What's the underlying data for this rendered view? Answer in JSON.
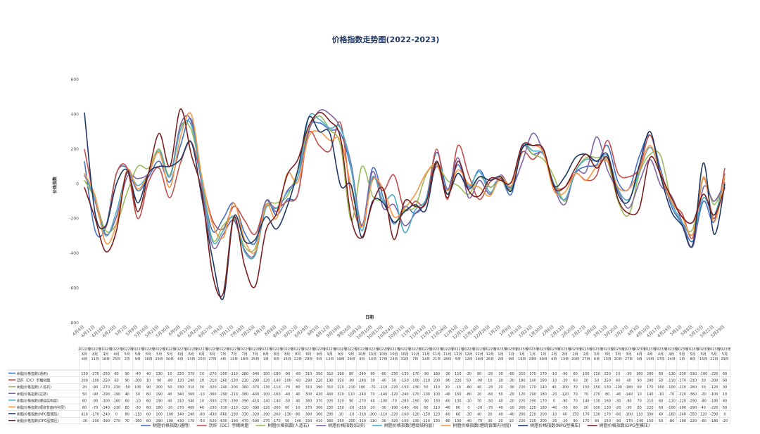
{
  "chart_data": {
    "type": "line",
    "title": "价格指数走势图(2022-2023)",
    "xlabel": "日期",
    "ylabel": "价格指数",
    "ylim": [
      -800,
      600
    ],
    "yticks": [
      600,
      400,
      200,
      0,
      -200,
      -400,
      -600,
      -800
    ],
    "grid": false,
    "legend_position": "bottom",
    "categories": [
      "4月4日",
      "4月11日",
      "4月18日",
      "4月25日",
      "5月2日",
      "5月9日",
      "5月16日",
      "5月23日",
      "5月30日",
      "6月6日",
      "6月13日",
      "6月20日",
      "6月27日",
      "7月4日",
      "7月11日",
      "7月18日",
      "7月25日",
      "8月1日",
      "8月8日",
      "8月15日",
      "8月22日",
      "8月29日",
      "9月5日",
      "9月12日",
      "9月19日",
      "9月26日",
      "10月3日",
      "10月10日",
      "10月17日",
      "10月24日",
      "10月31日",
      "11月7日",
      "11月14日",
      "11月21日",
      "11月28日",
      "12月5日",
      "12月12日",
      "12月19日",
      "12月26日",
      "1月2日",
      "1月9日",
      "1月16日",
      "1月23日",
      "1月30日",
      "2月6日",
      "2月13日",
      "2月20日",
      "2月27日",
      "3月6日",
      "3月13日",
      "3月20日",
      "3月27日",
      "4月3日",
      "4月10日",
      "4月17日",
      "4月24日",
      "5月1日",
      "5月8日",
      "5月15日",
      "5月22日",
      "5月29日"
    ],
    "table_categories": [
      "2022年4月4日",
      "2022年4月11日",
      "2022年4月18日",
      "2022年4月25日",
      "2022年5月2日",
      "2022年5月9日",
      "2022年5月16日",
      "2022年5月23日",
      "2022年5月30日",
      "2022年6月6日",
      "2022年6月13日",
      "2022年6月20日",
      "2022年6月27日",
      "2022年7月4日",
      "2022年7月11日",
      "2022年7月18日",
      "2022年7月25日",
      "2022年8月1日",
      "2022年8月8日",
      "2022年8月15日",
      "2022年8月22日",
      "2022年8月29日",
      "2022年9月5日",
      "2022年9月12日",
      "2022年9月19日",
      "2022年9月26日",
      "2022年10月3日",
      "2022年10月10日",
      "2022年10月17日",
      "2022年10月24日",
      "2022年10月31日",
      "2022年11月7日",
      "2022年11月14日",
      "2022年11月21日",
      "2022年11月28日",
      "2022年12月5日",
      "2022年12月12日",
      "2022年12月19日",
      "2022年12月26日",
      "2023年1月2日",
      "2023年1月9日",
      "2023年1月16日",
      "2023年1月23日",
      "2023年1月30日",
      "2023年2月6日",
      "2023年2月13日",
      "2023年2月20日",
      "2023年2月27日",
      "2023年3月6日",
      "2023年3月13日",
      "2023年3月20日",
      "2023年3月27日",
      "2023年4月3日",
      "2023年4月10日",
      "2023年4月17日",
      "2023年4月24日",
      "2023年5月1日",
      "2023年5月8日",
      "2023年5月15日",
      "2023年5月22日",
      "2023年5月29日"
    ],
    "series": [
      {
        "name": "树脂价格指数(通用)",
        "color": "#4472c4",
        "values": [
          130,
          -270,
          -250,
          60,
          90,
          -40,
          40,
          130,
          10,
          220,
          370,
          10,
          -270,
          -200,
          -110,
          -280,
          -340,
          -100,
          -180,
          -90,
          -60,
          310,
          350,
          310,
          290,
          80,
          -240,
          90,
          -80,
          -230,
          -130,
          -170,
          -90,
          180,
          -30,
          110,
          -20,
          80,
          -20,
          30,
          -60,
          210,
          170,
          170,
          -10,
          -90,
          60,
          100,
          110,
          220,
          10,
          -30,
          160,
          280,
          80,
          -130,
          -230,
          -330,
          -100,
          -220,
          60
        ]
      },
      {
        "name": "沥纤（DC）手糊树脂",
        "color": "#c0504d",
        "values": [
          200,
          -100,
          -250,
          60,
          90,
          -200,
          10,
          90,
          -80,
          120,
          240,
          20,
          -210,
          -260,
          -130,
          -210,
          -290,
          -120,
          -140,
          -100,
          -60,
          290,
          220,
          190,
          350,
          -80,
          -240,
          30,
          -40,
          50,
          -150,
          -100,
          -110,
          200,
          -90,
          220,
          50,
          -90,
          10,
          30,
          -30,
          180,
          140,
          180,
          -10,
          -20,
          60,
          20,
          50,
          250,
          60,
          40,
          90,
          280,
          50,
          -110,
          -170,
          -310,
          30,
          -200,
          90
        ]
      },
      {
        "name": "树脂价格指数(人造石)",
        "color": "#9bbb59",
        "values": [
          20,
          -90,
          -270,
          -230,
          -50,
          100,
          90,
          200,
          50,
          330,
          310,
          30,
          -320,
          -240,
          -200,
          -360,
          -370,
          -130,
          -110,
          -70,
          80,
          310,
          390,
          310,
          220,
          -210,
          100,
          -70,
          -110,
          -220,
          -150,
          -130,
          50,
          110,
          20,
          -10,
          -60,
          40,
          -20,
          20,
          -30,
          220,
          170,
          140,
          40,
          -100,
          70,
          150,
          150,
          130,
          -100,
          -180,
          60,
          170,
          160,
          -100,
          -220,
          -260,
          30,
          -120,
          30
        ]
      },
      {
        "name": "树脂价格指数(拉挤)",
        "color": "#8064a2",
        "values": [
          50,
          -90,
          -290,
          -190,
          40,
          30,
          60,
          190,
          40,
          340,
          360,
          -10,
          -360,
          -290,
          -210,
          -380,
          -400,
          -100,
          -160,
          -40,
          40,
          300,
          420,
          400,
          320,
          110,
          -240,
          70,
          -140,
          -120,
          -240,
          -170,
          -100,
          100,
          -40,
          150,
          -80,
          20,
          -60,
          50,
          -20,
          120,
          290,
          180,
          -20,
          -120,
          70,
          70,
          270,
          80,
          -40,
          -140,
          10,
          140,
          -10,
          -70,
          -220,
          -360,
          -20,
          -100,
          10
        ]
      },
      {
        "name": "树脂价格指数(缠绕结构层)",
        "color": "#4bacc6",
        "values": [
          60,
          -90,
          -300,
          -160,
          60,
          -10,
          60,
          190,
          40,
          310,
          340,
          10,
          -330,
          -270,
          -190,
          -390,
          -410,
          -140,
          -140,
          -50,
          40,
          380,
          370,
          320,
          320,
          90,
          -270,
          40,
          -100,
          -70,
          -280,
          -150,
          -90,
          130,
          -60,
          130,
          -10,
          70,
          -50,
          40,
          -20,
          220,
          190,
          170,
          0,
          -90,
          70,
          140,
          130,
          160,
          -30,
          -90,
          70,
          210,
          60,
          -110,
          -220,
          -290,
          -80,
          -180,
          40
        ]
      },
      {
        "name": "树脂价格指数(缠绕背面内衬层)",
        "color": "#f79646",
        "values": [
          60,
          -70,
          -340,
          -230,
          80,
          -30,
          60,
          180,
          -20,
          270,
          400,
          40,
          -230,
          -310,
          -110,
          -320,
          -390,
          -120,
          -200,
          60,
          10,
          270,
          300,
          250,
          250,
          -20,
          -250,
          20,
          -30,
          -190,
          -140,
          -60,
          60,
          110,
          -40,
          80,
          0,
          -20,
          -70,
          40,
          -10,
          200,
          220,
          180,
          -40,
          -50,
          60,
          20,
          100,
          130,
          -20,
          -30,
          80,
          220,
          60,
          -100,
          -190,
          -290,
          40,
          -220,
          50
        ]
      },
      {
        "name": "树脂价格指数(NPG型模压)",
        "color": "#1f3864",
        "values": [
          410,
          -170,
          -240,
          0,
          80,
          -110,
          60,
          100,
          100,
          140,
          240,
          -80,
          -430,
          -660,
          -190,
          -330,
          -320,
          -190,
          -260,
          -130,
          80,
          380,
          300,
          290,
          -10,
          -10,
          -310,
          -100,
          -110,
          -220,
          -160,
          -120,
          -150,
          120,
          -60,
          60,
          -30,
          40,
          20,
          40,
          -40,
          200,
          220,
          200,
          -10,
          40,
          150,
          170,
          130,
          170,
          -60,
          -100,
          110,
          300,
          40,
          -160,
          -240,
          -350,
          120,
          -290,
          0
        ]
      },
      {
        "name": "树脂价格指数(DPG型模压)",
        "color": "#7b1f1f",
        "values": [
          -20,
          -200,
          -390,
          -270,
          70,
          -160,
          60,
          290,
          100,
          430,
          170,
          -50,
          -520,
          -630,
          -190,
          -470,
          -590,
          -270,
          -170,
          50,
          140,
          330,
          410,
          360,
          260,
          -200,
          -310,
          -110,
          -30,
          -320,
          -100,
          -130,
          -110,
          130,
          -80,
          130,
          -40,
          -70,
          30,
          20,
          10,
          220,
          220,
          200,
          -20,
          -20,
          90,
          170,
          90,
          150,
          -90,
          -170,
          -140,
          150,
          50,
          -80,
          -190,
          -220,
          -60,
          -180,
          -20
        ]
      }
    ]
  }
}
